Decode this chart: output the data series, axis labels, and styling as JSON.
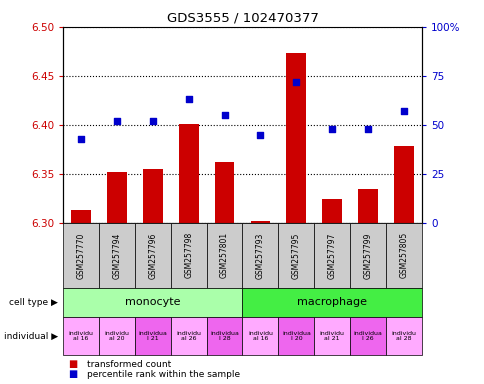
{
  "title": "GDS3555 / 102470377",
  "samples": [
    "GSM257770",
    "GSM257794",
    "GSM257796",
    "GSM257798",
    "GSM257801",
    "GSM257793",
    "GSM257795",
    "GSM257797",
    "GSM257799",
    "GSM257805"
  ],
  "bar_values": [
    6.313,
    6.352,
    6.355,
    6.401,
    6.362,
    6.302,
    6.473,
    6.324,
    6.334,
    6.378
  ],
  "bar_base": 6.3,
  "dot_values_pct": [
    43,
    52,
    52,
    63,
    55,
    45,
    72,
    48,
    48,
    57
  ],
  "ylim": [
    6.3,
    6.5
  ],
  "y2lim": [
    0,
    100
  ],
  "yticks": [
    6.3,
    6.35,
    6.4,
    6.45,
    6.5
  ],
  "y2ticks": [
    0,
    25,
    50,
    75,
    100
  ],
  "bar_color": "#cc0000",
  "dot_color": "#0000cc",
  "cell_type_data": [
    {
      "label": "monocyte",
      "start": 0,
      "end": 5,
      "color": "#aaffaa"
    },
    {
      "label": "macrophage",
      "start": 5,
      "end": 10,
      "color": "#44ee44"
    }
  ],
  "indiv_texts": [
    "individu\nal 16",
    "individu\nal 20",
    "individua\nl 21",
    "individu\nal 26",
    "individua\nl 28",
    "individu\nal 16",
    "individua\nl 20",
    "individu\nal 21",
    "individua\nl 26",
    "individu\nal 28"
  ],
  "indiv_colors": [
    "#ffaaff",
    "#ffaaff",
    "#ee66ee",
    "#ffaaff",
    "#ee66ee",
    "#ffaaff",
    "#ee66ee",
    "#ffaaff",
    "#ee66ee",
    "#ffaaff"
  ],
  "sample_label_bg": "#cccccc",
  "ylabel_color": "#cc0000",
  "y2label_color": "#0000cc",
  "legend_bar_color": "#cc0000",
  "legend_dot_color": "#0000cc"
}
